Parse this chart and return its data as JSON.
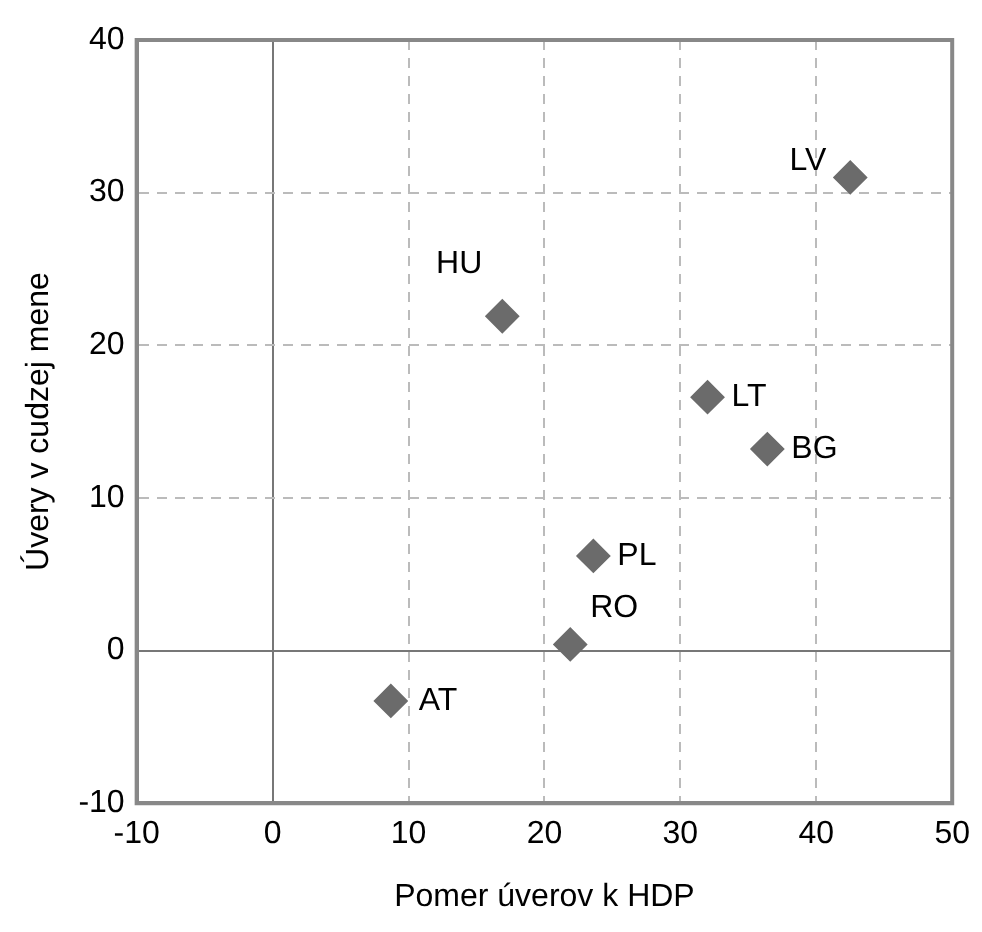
{
  "chart_data": {
    "type": "scatter",
    "xlabel": "Pomer úverov k HDP",
    "ylabel": "Úvery v cudzej mene",
    "x": [
      42.5,
      16.9,
      32.0,
      36.4,
      23.6,
      21.9,
      8.7
    ],
    "values": [
      31.0,
      21.9,
      16.6,
      13.2,
      6.2,
      0.4,
      -3.3
    ],
    "color": "#6b6b6b",
    "marker": "diamond",
    "grid": true,
    "legend": false,
    "xlim": [
      -10,
      50
    ],
    "xticks": [
      -10,
      0,
      10,
      20,
      30,
      40,
      50
    ],
    "ylim": [
      -10,
      40
    ],
    "yticks": [
      -10,
      0,
      10,
      20,
      30,
      40
    ],
    "annotations": [
      {
        "text": "LV",
        "x": 42.5,
        "y": 31.0
      },
      {
        "text": "HU",
        "x": 16.9,
        "y": 21.9
      },
      {
        "text": "LT",
        "x": 32.0,
        "y": 16.6
      },
      {
        "text": "BG",
        "x": 36.4,
        "y": 13.2
      },
      {
        "text": "PL",
        "x": 23.6,
        "y": 6.2
      },
      {
        "text": "RO",
        "x": 21.9,
        "y": 0.4
      },
      {
        "text": "AT",
        "x": 8.7,
        "y": -3.3
      }
    ]
  }
}
